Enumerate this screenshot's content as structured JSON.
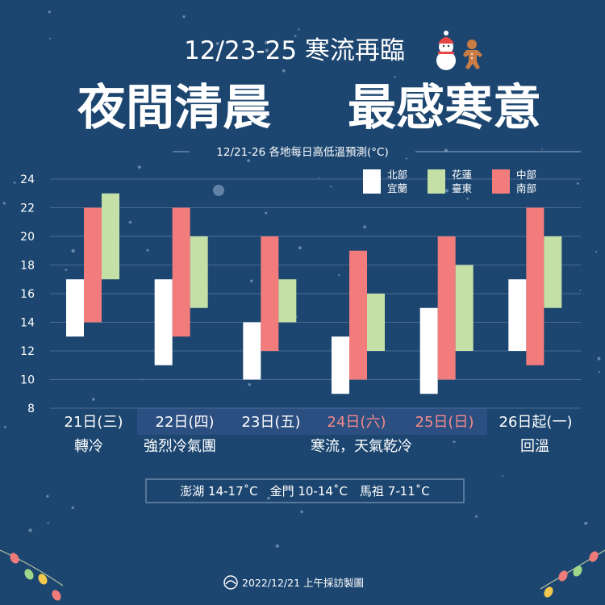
{
  "header": {
    "title": "12/23-25 寒流再臨",
    "headline_left": "夜間清晨",
    "headline_right": "最感寒意",
    "subtitle": "12/21-26 各地每日高低溫預測(°C)"
  },
  "legend": [
    {
      "line1": "北部",
      "line2": "宜蘭",
      "color": "#ffffff"
    },
    {
      "line1": "花蓮",
      "line2": "臺東",
      "color": "#c5e0a6"
    },
    {
      "line1": "中部",
      "line2": "南部",
      "color": "#f27c7c"
    }
  ],
  "days": [
    {
      "label": "21日(三)",
      "highlight": false,
      "label_color": "#ffffff"
    },
    {
      "label": "22日(四)",
      "highlight": true,
      "label_color": "#ffffff"
    },
    {
      "label": "23日(五)",
      "highlight": true,
      "label_color": "#ffffff"
    },
    {
      "label": "24日(六)",
      "highlight": true,
      "label_color": "#f48a8a"
    },
    {
      "label": "25日(日)",
      "highlight": true,
      "label_color": "#f48a8a"
    },
    {
      "label": "26日起(一)",
      "highlight": false,
      "label_color": "#ffffff"
    }
  ],
  "notes": [
    "轉冷",
    "強烈冷氣團",
    "寒流，天氣乾冷",
    "回溫"
  ],
  "islands": "澎湖 14-17˚C　金門 10-14˚C　馬祖 7-11˚C",
  "footer": "2022/12/21 上午採訪製圖",
  "colors": {
    "background": "#1c4670",
    "highlight_band": "#2c4f82"
  },
  "chart_data": {
    "type": "bar",
    "subtype": "floating-range",
    "categories": [
      "21日(三)",
      "22日(四)",
      "23日(五)",
      "24日(六)",
      "25日(日)",
      "26日起(一)"
    ],
    "ylim": [
      8,
      24
    ],
    "yticks": [
      8,
      10,
      12,
      14,
      16,
      18,
      20,
      22,
      24
    ],
    "grid": true,
    "legend_position": "top-right",
    "series": [
      {
        "name": "北部 宜蘭",
        "color": "#ffffff",
        "low": [
          13,
          11,
          10,
          9,
          9,
          12
        ],
        "high": [
          17,
          17,
          14,
          13,
          15,
          17
        ]
      },
      {
        "name": "中部 南部",
        "color": "#f27c7c",
        "low": [
          14,
          13,
          12,
          10,
          10,
          11
        ],
        "high": [
          22,
          22,
          20,
          19,
          20,
          22
        ]
      },
      {
        "name": "花蓮 臺東",
        "color": "#c5e0a6",
        "low": [
          17,
          15,
          14,
          12,
          12,
          15
        ],
        "high": [
          23,
          20,
          17,
          16,
          18,
          20
        ]
      }
    ]
  }
}
